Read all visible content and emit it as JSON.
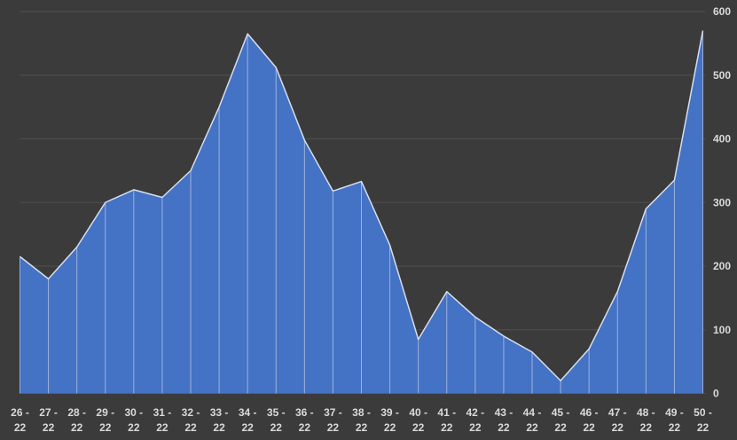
{
  "colors": {
    "background": "#3B3B3B",
    "area_fill": "#4472C4",
    "area_edge": "#D6DEEF",
    "drop_line": "#BCC9E4",
    "gridline": "#505050",
    "axis_text": "#D9D9D9"
  },
  "chart_data": {
    "type": "area",
    "title": "",
    "xlabel": "",
    "ylabel": "",
    "categories": [
      "26 - 22",
      "27 - 22",
      "28 - 22",
      "29 - 22",
      "30 - 22",
      "31 - 22",
      "32 - 22",
      "33 - 22",
      "34 - 22",
      "35 - 22",
      "36 - 22",
      "37 - 22",
      "38 - 22",
      "39 - 22",
      "40 - 22",
      "41 - 22",
      "42 - 22",
      "43 - 22",
      "44 - 22",
      "45 - 22",
      "46 - 22",
      "47 - 22",
      "48 - 22",
      "49 - 22",
      "50 - 22"
    ],
    "values": [
      215,
      180,
      230,
      300,
      320,
      308,
      350,
      450,
      565,
      512,
      398,
      318,
      333,
      233,
      85,
      160,
      120,
      90,
      65,
      20,
      70,
      160,
      290,
      335,
      570
    ],
    "ylim": [
      0,
      600
    ],
    "y_ticks": [
      0,
      100,
      200,
      300,
      400,
      500,
      600
    ],
    "y_axis_side": "right",
    "grid": "horizontal",
    "legend": false,
    "drop_lines": true
  }
}
